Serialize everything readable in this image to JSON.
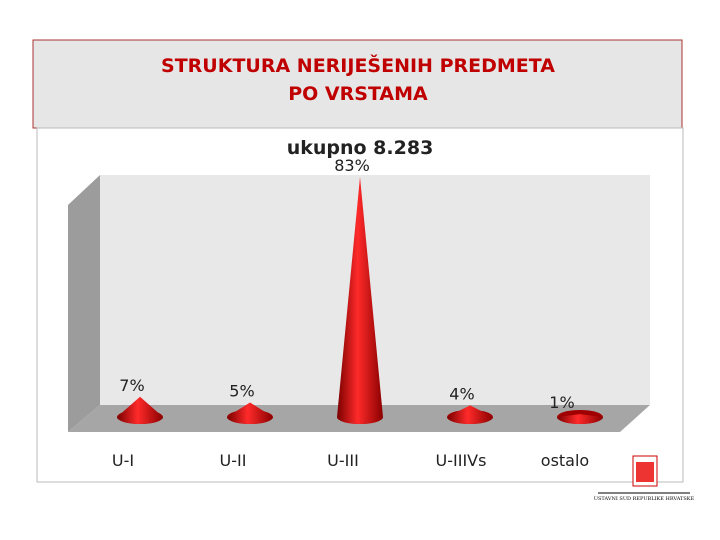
{
  "header": {
    "title": [
      "STRUKTURA NERIJEŠENIH PREDMETA",
      "PO VRSTAMA"
    ]
  },
  "chart_data": {
    "type": "cone",
    "title": "ukupno 8.283",
    "categories": [
      "U-I",
      "U-II",
      "U-III",
      "U-IIIVs",
      "ostalo"
    ],
    "values": [
      7,
      5,
      83,
      4,
      1
    ],
    "value_labels": [
      "7%",
      "5%",
      "83%",
      "4%",
      "1%"
    ],
    "color": "#d40000"
  },
  "logo": {
    "text": "USTAVNI SUD REPUBLIKE HRVATSKE"
  }
}
